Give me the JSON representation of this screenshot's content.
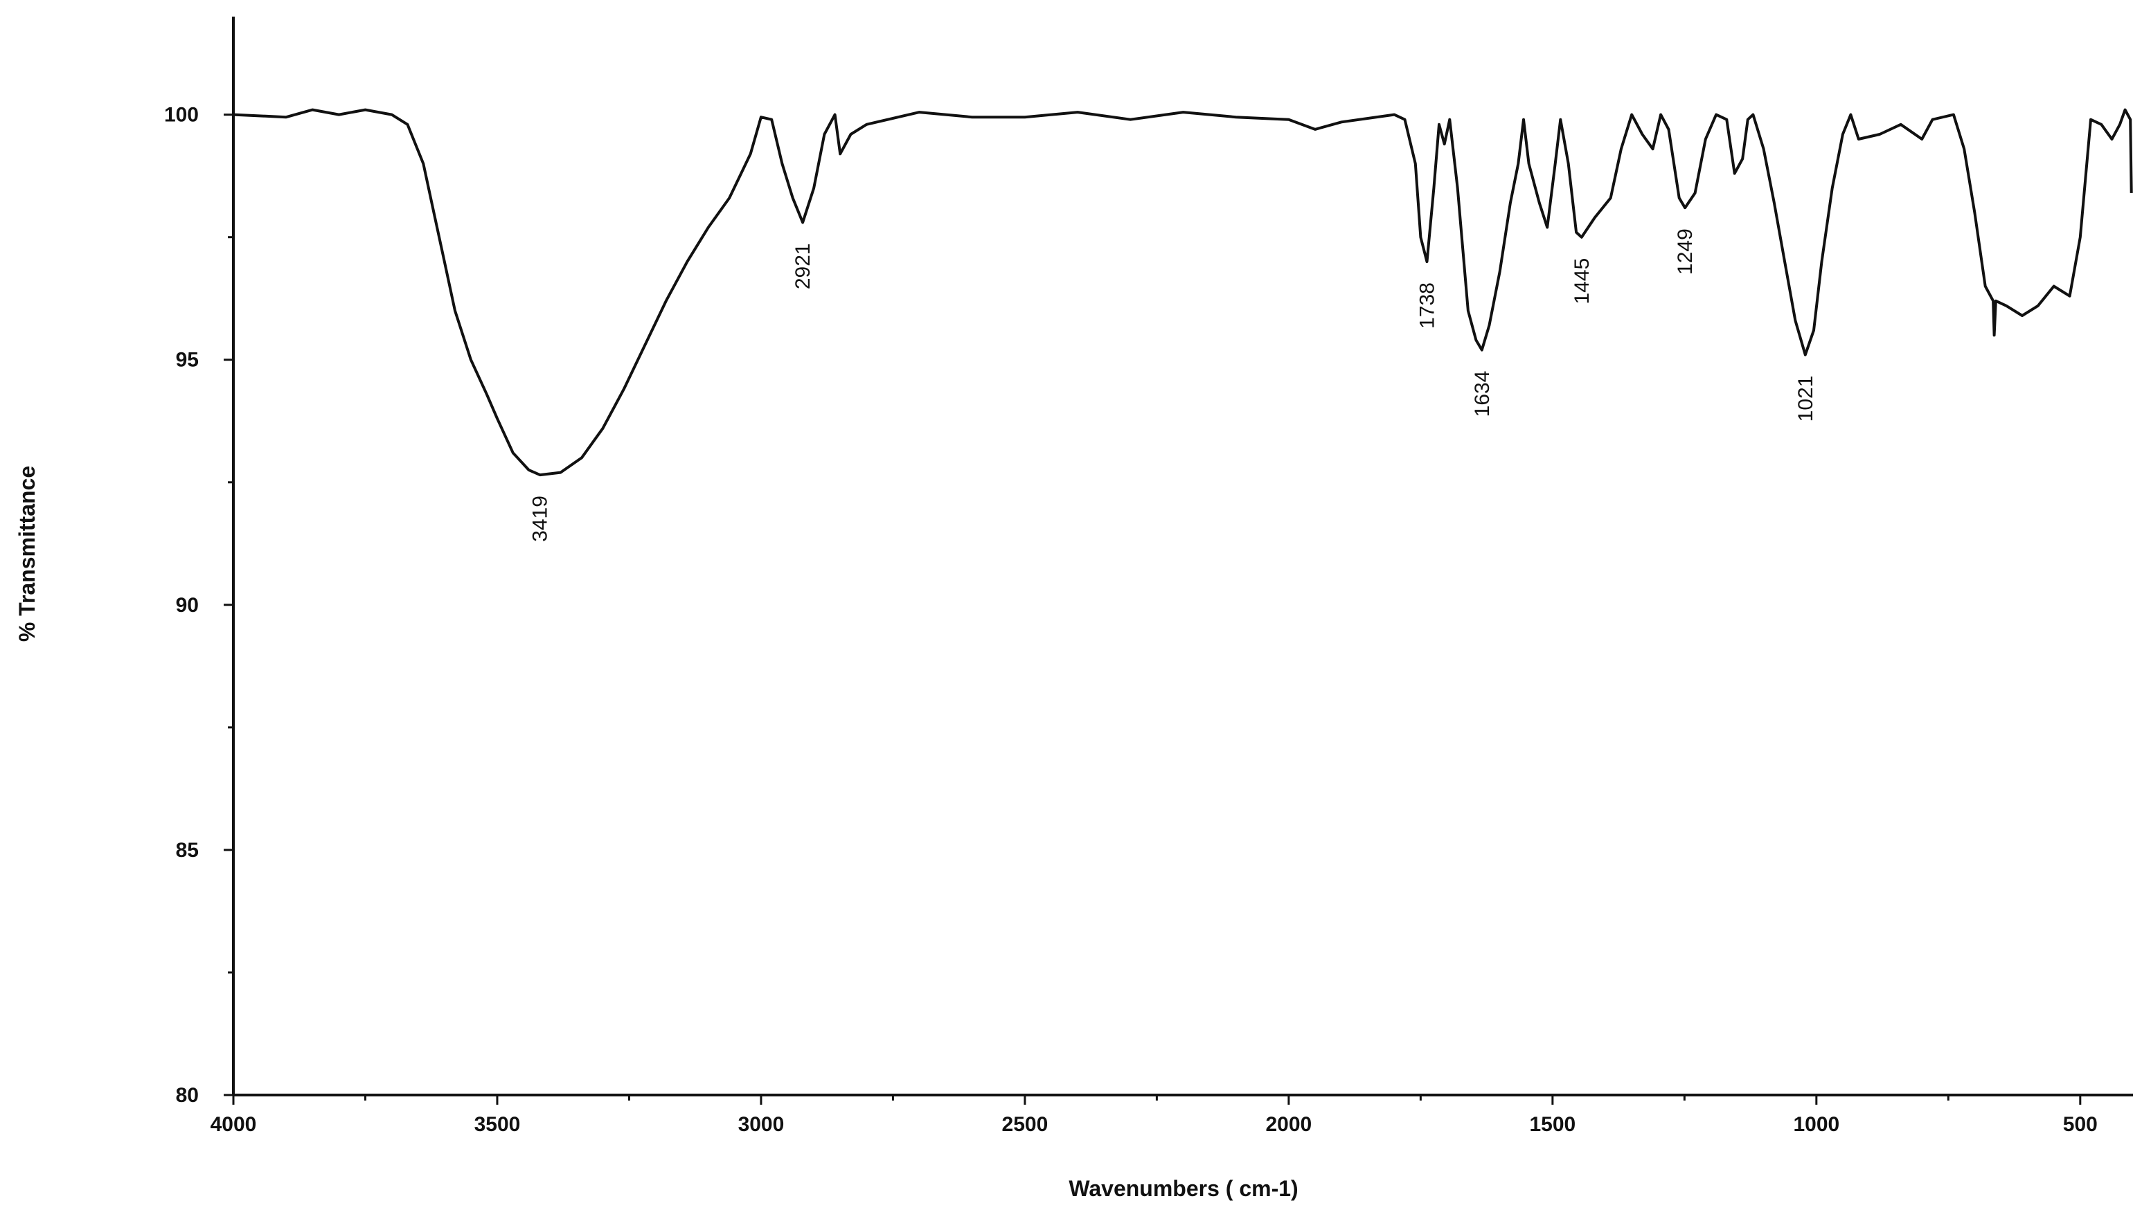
{
  "chart_data": {
    "type": "line",
    "xlabel": "Wavenumbers ( cm-1)",
    "ylabel": "% Transmittance",
    "xlim": [
      4000,
      400
    ],
    "ylim": [
      80,
      102
    ],
    "xticks": [
      4000,
      3500,
      3000,
      2500,
      2000,
      1500,
      1000,
      500
    ],
    "xminor_ticks": [
      3750,
      3250,
      2750,
      2250,
      1750,
      1250,
      750
    ],
    "yticks": [
      80,
      85,
      90,
      95,
      100
    ],
    "yminor_ticks": [
      82.5,
      87.5,
      92.5,
      97.5
    ],
    "peak_labels": [
      3419,
      2921,
      1738,
      1634,
      1445,
      1249,
      1021
    ],
    "series": [
      {
        "color": "#111111",
        "x": [
          4000,
          3900,
          3850,
          3800,
          3750,
          3700,
          3670,
          3640,
          3620,
          3600,
          3580,
          3550,
          3520,
          3500,
          3470,
          3440,
          3419,
          3380,
          3340,
          3300,
          3260,
          3220,
          3180,
          3140,
          3100,
          3060,
          3020,
          3000,
          2980,
          2960,
          2940,
          2921,
          2900,
          2880,
          2860,
          2850,
          2830,
          2800,
          2700,
          2600,
          2500,
          2400,
          2300,
          2200,
          2100,
          2000,
          1950,
          1900,
          1800,
          1780,
          1760,
          1750,
          1738,
          1725,
          1715,
          1705,
          1695,
          1680,
          1660,
          1645,
          1634,
          1620,
          1600,
          1580,
          1565,
          1555,
          1545,
          1525,
          1510,
          1495,
          1485,
          1470,
          1455,
          1445,
          1420,
          1390,
          1370,
          1350,
          1330,
          1310,
          1295,
          1280,
          1260,
          1249,
          1230,
          1210,
          1190,
          1170,
          1155,
          1140,
          1130,
          1120,
          1100,
          1080,
          1060,
          1040,
          1021,
          1005,
          990,
          970,
          950,
          935,
          920,
          880,
          840,
          800,
          780,
          740,
          720,
          700,
          680,
          665,
          663,
          660,
          640,
          610,
          580,
          550,
          520,
          500,
          480,
          460,
          440,
          425,
          415,
          405,
          403
        ],
        "values": [
          100,
          99.95,
          100.1,
          100,
          100.1,
          100,
          99.8,
          99.0,
          98,
          97,
          96,
          95,
          94.3,
          93.8,
          93.1,
          92.75,
          92.65,
          92.7,
          93.0,
          93.6,
          94.4,
          95.3,
          96.2,
          97.0,
          97.7,
          98.3,
          99.2,
          99.95,
          99.9,
          99.0,
          98.3,
          97.8,
          98.5,
          99.6,
          100,
          99.2,
          99.6,
          99.8,
          100.05,
          99.95,
          99.95,
          100.05,
          99.9,
          100.05,
          99.95,
          99.9,
          99.7,
          99.85,
          100,
          99.9,
          99.0,
          97.5,
          97.0,
          98.5,
          99.8,
          99.4,
          99.9,
          98.5,
          96.0,
          95.4,
          95.2,
          95.7,
          96.8,
          98.2,
          99.0,
          99.9,
          99.0,
          98.2,
          97.7,
          99.0,
          99.9,
          99.0,
          97.6,
          97.5,
          97.9,
          98.3,
          99.3,
          100,
          99.6,
          99.3,
          100,
          99.7,
          98.3,
          98.1,
          98.4,
          99.5,
          100,
          99.9,
          98.8,
          99.1,
          99.9,
          100,
          99.3,
          98.2,
          97.0,
          95.8,
          95.1,
          95.6,
          97.0,
          98.5,
          99.6,
          100,
          99.5,
          99.6,
          99.8,
          99.5,
          99.9,
          100,
          99.3,
          98.0,
          96.5,
          96.2,
          95.5,
          96.2,
          96.1,
          95.9,
          96.1,
          96.5,
          96.3,
          97.5,
          99.9,
          99.8,
          99.5,
          99.8,
          100.1,
          99.9,
          98.4
        ]
      }
    ]
  }
}
